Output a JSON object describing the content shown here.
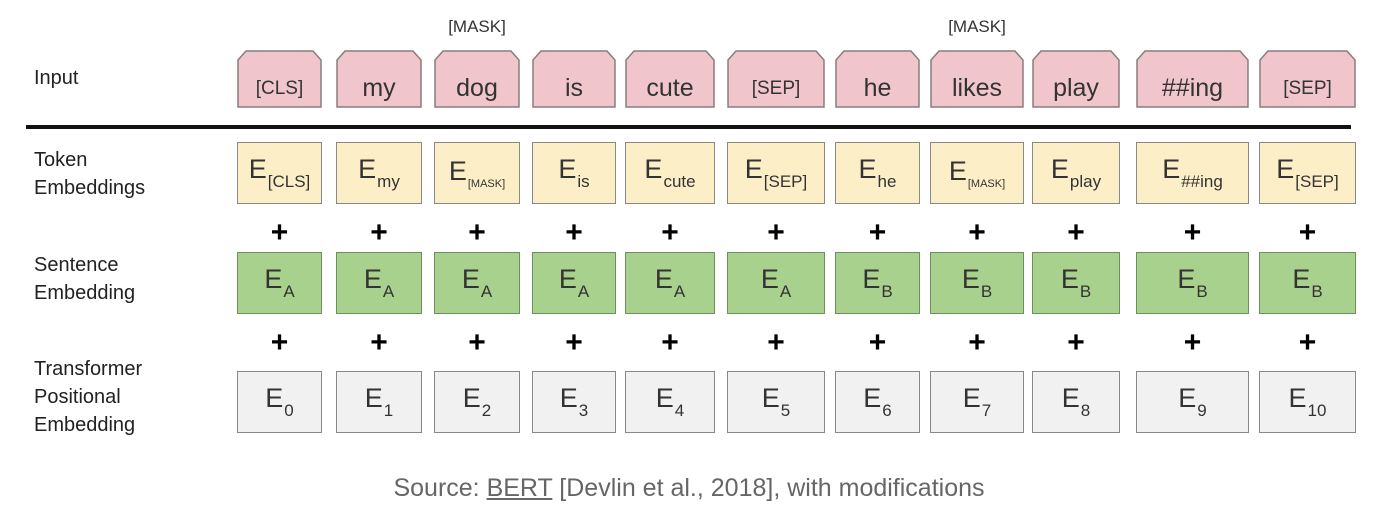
{
  "labels": {
    "input": "Input",
    "token_line1": "Token",
    "token_line2": "Embeddings",
    "sentence_line1": "Sentence",
    "sentence_line2": "Embedding",
    "pos_line1": "Transformer",
    "pos_line2": "Positional",
    "pos_line3": "Embedding"
  },
  "plus_symbol": "+",
  "columns": [
    {
      "input": "[CLS]",
      "mask": "",
      "token_sub": "[CLS]",
      "sentence_sub": "A",
      "position_sub": "0"
    },
    {
      "input": "my",
      "mask": "",
      "token_sub": "my",
      "sentence_sub": "A",
      "position_sub": "1"
    },
    {
      "input": "dog",
      "mask": "[MASK]",
      "token_sub": "[MASK]",
      "sentence_sub": "A",
      "position_sub": "2"
    },
    {
      "input": "is",
      "mask": "",
      "token_sub": "is",
      "sentence_sub": "A",
      "position_sub": "3"
    },
    {
      "input": "cute",
      "mask": "",
      "token_sub": "cute",
      "sentence_sub": "A",
      "position_sub": "4"
    },
    {
      "input": "[SEP]",
      "mask": "",
      "token_sub": "[SEP]",
      "sentence_sub": "A",
      "position_sub": "5"
    },
    {
      "input": "he",
      "mask": "",
      "token_sub": "he",
      "sentence_sub": "B",
      "position_sub": "6"
    },
    {
      "input": "likes",
      "mask": "[MASK]",
      "token_sub": "[MASK]",
      "sentence_sub": "B",
      "position_sub": "7"
    },
    {
      "input": "play",
      "mask": "",
      "token_sub": "play",
      "sentence_sub": "B",
      "position_sub": "8"
    },
    {
      "input": "##ing",
      "mask": "",
      "token_sub": "##ing",
      "sentence_sub": "B",
      "position_sub": "9"
    },
    {
      "input": "[SEP]",
      "mask": "",
      "token_sub": "[SEP]",
      "sentence_sub": "B",
      "position_sub": "10"
    }
  ],
  "embedding_letter": "E",
  "caption": {
    "prefix": "Source: ",
    "link_text": "BERT",
    "suffix": " [Devlin et al., 2018], with modifications"
  },
  "colors": {
    "input_fill": "#f0c6cc",
    "input_stroke": "#8a7c7e",
    "token_fill": "#fcefc7",
    "sentence_fill": "#a9d18e",
    "position_fill": "#f1f1f1"
  }
}
